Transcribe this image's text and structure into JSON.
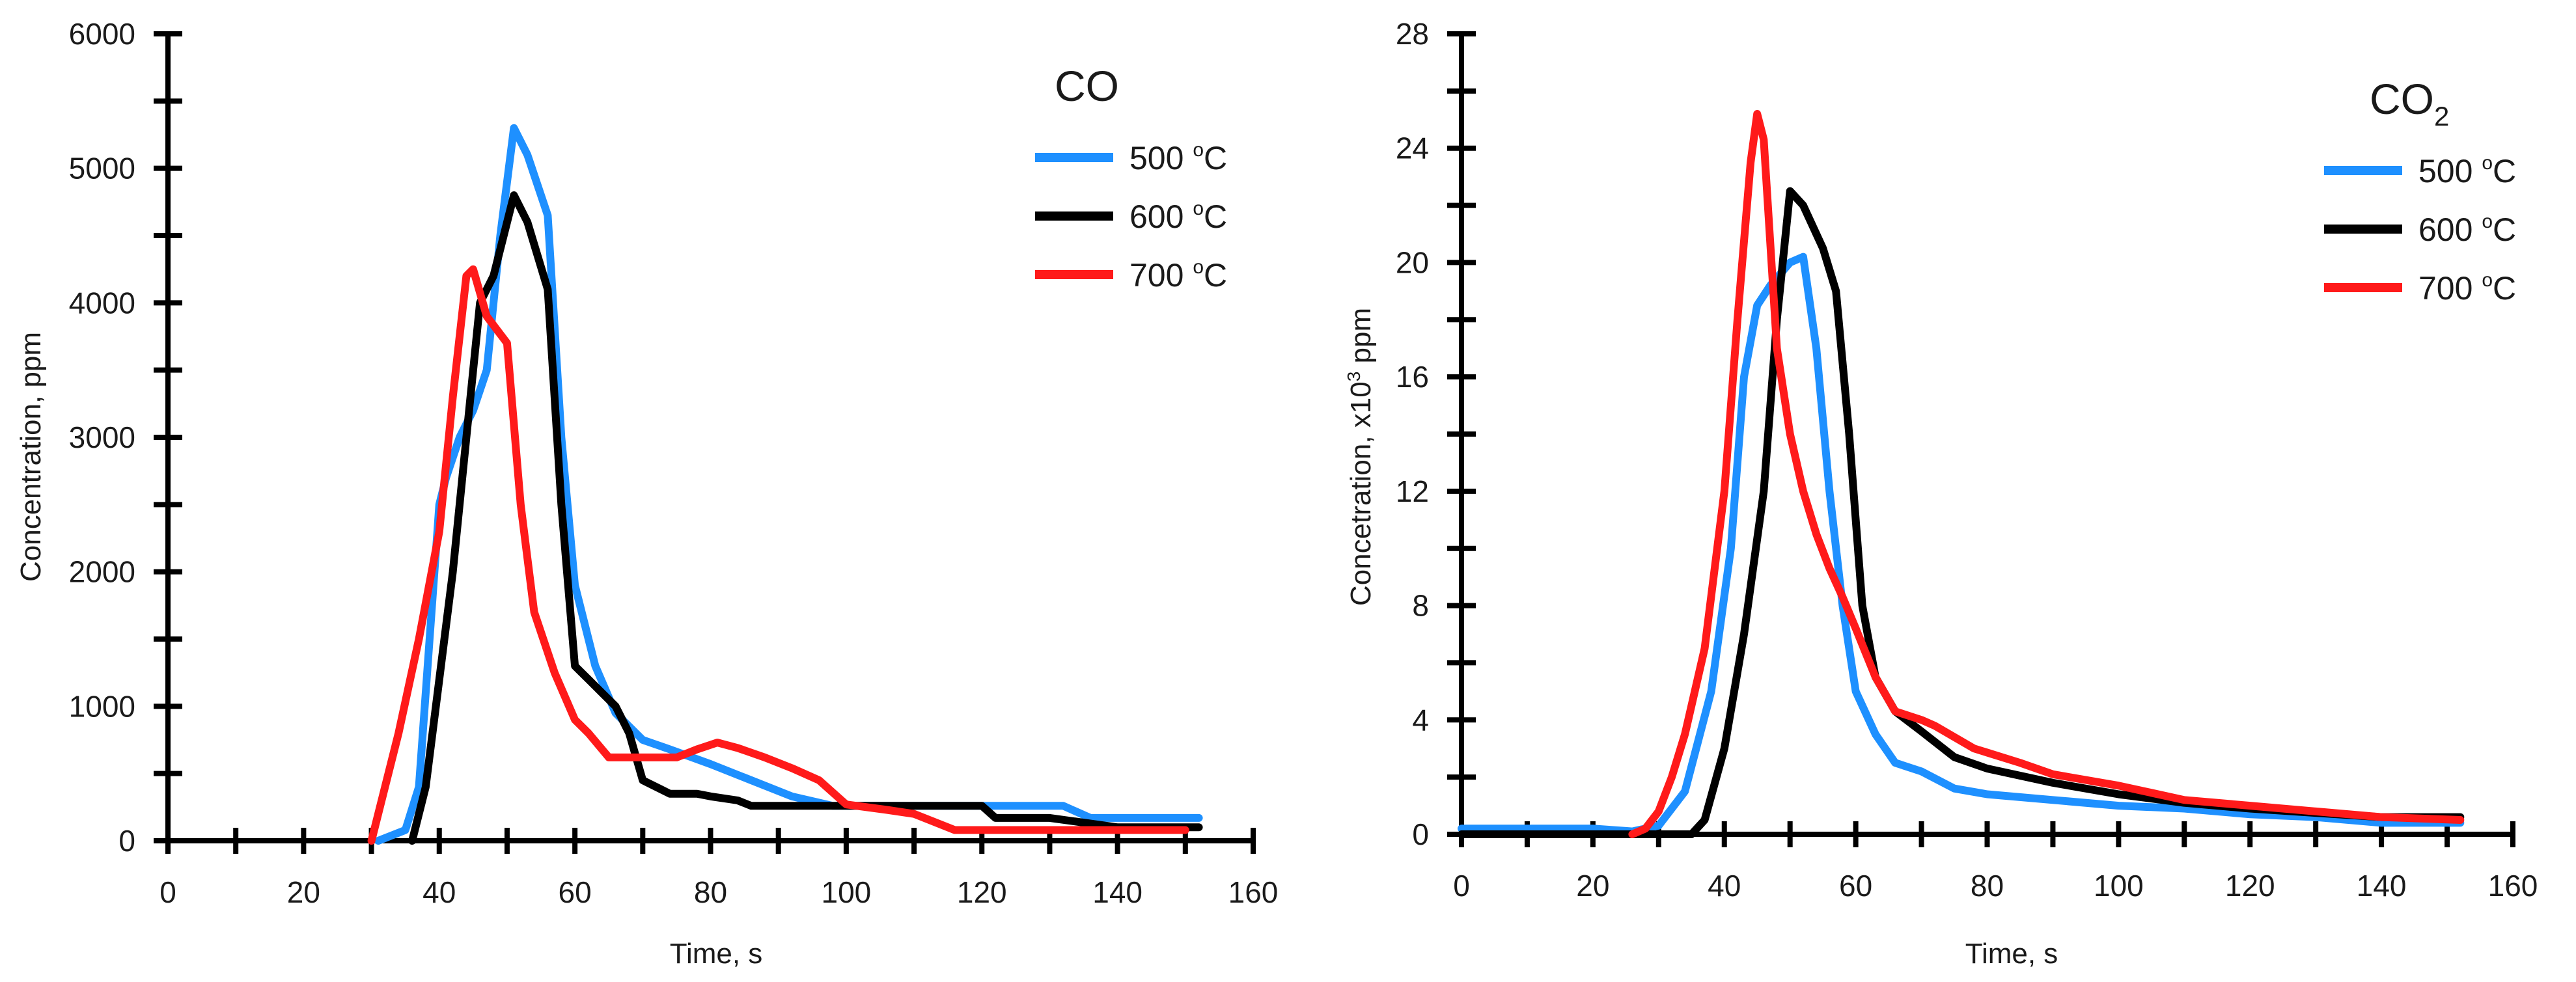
{
  "colors": {
    "blue": "#1e90ff",
    "black": "#000000",
    "red": "#ff1a1a",
    "axis": "#000000"
  },
  "chart_data": [
    {
      "type": "line",
      "title": "CO",
      "title_main": "CO",
      "title_sub": "",
      "xlabel": "Time, s",
      "ylabel": "Concentration, ppm",
      "xlim": [
        0,
        160
      ],
      "ylim": [
        0,
        6000
      ],
      "xticks": [
        "0",
        "20",
        "40",
        "60",
        "80",
        "100",
        "120",
        "140",
        "160"
      ],
      "yticks": [
        "0",
        "1000",
        "2000",
        "3000",
        "4000",
        "5000",
        "6000"
      ],
      "xminor_step": 10,
      "yminor_step": 500,
      "legend_position": "top-right",
      "series": [
        {
          "name": "500 °C",
          "name_main": "500 ",
          "name_sup": "o",
          "name_tail": "C",
          "color": "#1e90ff",
          "x": [
            31,
            35,
            37,
            40,
            41,
            43,
            45,
            47,
            49,
            51,
            53,
            56,
            58,
            60,
            63,
            66,
            70,
            74,
            80,
            86,
            92,
            98,
            104,
            110,
            120,
            132,
            136,
            146,
            152
          ],
          "y": [
            0,
            80,
            400,
            2500,
            2700,
            3000,
            3200,
            3500,
            4500,
            5300,
            5100,
            4650,
            3000,
            1900,
            1300,
            950,
            750,
            680,
            570,
            450,
            330,
            260,
            260,
            260,
            260,
            260,
            170,
            170,
            170
          ]
        },
        {
          "name": "600 °C",
          "name_main": "600 ",
          "name_sup": "o",
          "name_tail": "C",
          "color": "#000000",
          "x": [
            36,
            38,
            40,
            42,
            44,
            46,
            48,
            51,
            53,
            56,
            58,
            60,
            62,
            64,
            66,
            68,
            70,
            74,
            78,
            80,
            84,
            86,
            92,
            98,
            104,
            110,
            116,
            120,
            122,
            130,
            140,
            152
          ],
          "y": [
            0,
            400,
            1200,
            2000,
            3000,
            4000,
            4200,
            4800,
            4600,
            4100,
            2500,
            1300,
            1200,
            1100,
            1000,
            800,
            450,
            350,
            350,
            330,
            300,
            260,
            260,
            260,
            260,
            260,
            260,
            260,
            170,
            170,
            100,
            100
          ]
        },
        {
          "name": "700 °C",
          "name_main": "700 ",
          "name_sup": "o",
          "name_tail": "C",
          "color": "#ff1a1a",
          "x": [
            30,
            34,
            37,
            40,
            42,
            44,
            45,
            47,
            50,
            52,
            54,
            57,
            60,
            62,
            65,
            70,
            75,
            78,
            81,
            84,
            88,
            92,
            96,
            100,
            106,
            110,
            116,
            126,
            136,
            150
          ],
          "y": [
            0,
            800,
            1500,
            2300,
            3300,
            4200,
            4250,
            3900,
            3700,
            2500,
            1700,
            1250,
            900,
            800,
            620,
            620,
            620,
            680,
            730,
            690,
            620,
            540,
            450,
            270,
            230,
            200,
            80,
            80,
            80,
            80
          ]
        }
      ]
    },
    {
      "type": "line",
      "title": "CO2",
      "title_main": "CO",
      "title_sub": "2",
      "xlabel": "Time, s",
      "ylabel": "Concetration, x10³ ppm",
      "ylabel_main": "Concetration, x10",
      "ylabel_sup": "3",
      "ylabel_tail": " ppm",
      "xlim": [
        0,
        160
      ],
      "ylim": [
        0,
        28
      ],
      "xticks": [
        "0",
        "20",
        "40",
        "60",
        "80",
        "100",
        "120",
        "140",
        "160"
      ],
      "yticks": [
        "0",
        "4",
        "8",
        "12",
        "16",
        "20",
        "24",
        "28"
      ],
      "xminor_step": 10,
      "yminor_step": 2,
      "legend_position": "top-right",
      "series": [
        {
          "name": "500 °C",
          "name_main": "500 ",
          "name_sup": "o",
          "name_tail": "C",
          "color": "#1e90ff",
          "x": [
            0,
            10,
            20,
            26,
            30,
            34,
            38,
            41,
            43,
            45,
            47,
            50,
            52,
            54,
            56,
            58,
            60,
            63,
            66,
            70,
            75,
            80,
            90,
            100,
            110,
            120,
            130,
            140,
            152
          ],
          "y": [
            0.2,
            0.2,
            0.2,
            0.1,
            0.3,
            1.5,
            5,
            10,
            16,
            18.5,
            19.2,
            20,
            20.2,
            17,
            12,
            8,
            5,
            3.5,
            2.5,
            2.2,
            1.6,
            1.4,
            1.2,
            1.0,
            0.9,
            0.7,
            0.6,
            0.4,
            0.4
          ]
        },
        {
          "name": "600 °C",
          "name_main": "600 ",
          "name_sup": "o",
          "name_tail": "C",
          "color": "#000000",
          "x": [
            0,
            10,
            20,
            30,
            35,
            37,
            40,
            43,
            46,
            48,
            50,
            52,
            55,
            57,
            59,
            61,
            63,
            66,
            70,
            75,
            80,
            90,
            100,
            110,
            120,
            130,
            140,
            152
          ],
          "y": [
            0,
            0,
            0,
            0,
            0,
            0.5,
            3,
            7,
            12,
            18,
            22.5,
            22,
            20.5,
            19,
            14,
            8,
            5.5,
            4.3,
            3.6,
            2.7,
            2.3,
            1.8,
            1.4,
            1.1,
            0.9,
            0.75,
            0.6,
            0.6
          ]
        },
        {
          "name": "700 °C",
          "name_main": "700 ",
          "name_sup": "o",
          "name_tail": "C",
          "color": "#ff1a1a",
          "x": [
            26,
            28,
            30,
            32,
            34,
            37,
            40,
            42,
            44,
            45,
            46,
            48,
            50,
            52,
            54,
            56,
            58,
            60,
            63,
            66,
            70,
            72,
            78,
            85,
            90,
            100,
            110,
            120,
            130,
            140,
            152
          ],
          "y": [
            0,
            0.2,
            0.8,
            2,
            3.5,
            6.5,
            12,
            18,
            23.5,
            25.2,
            24.3,
            17,
            14,
            12,
            10.5,
            9.3,
            8.3,
            7.2,
            5.5,
            4.3,
            4.0,
            3.8,
            3.0,
            2.5,
            2.1,
            1.7,
            1.2,
            1.0,
            0.8,
            0.6,
            0.5
          ]
        }
      ]
    }
  ]
}
